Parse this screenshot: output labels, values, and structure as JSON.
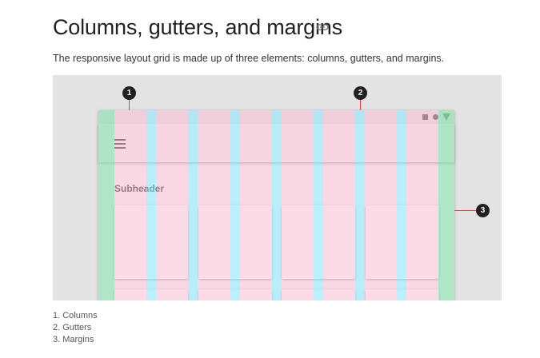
{
  "heading": "Columns, gutters, and margins",
  "intro": "The responsive layout grid is made up of three elements: columns, gutters, and margins.",
  "icons": {
    "permalink": "link-icon",
    "menu": "menu-icon"
  },
  "figure": {
    "subheader": "Subheader",
    "markers": [
      "1",
      "2",
      "3"
    ]
  },
  "legend": [
    "1. Columns",
    "2. Gutters",
    "3. Margins"
  ],
  "colors": {
    "column_overlay": "#f8a0be",
    "gutter_overlay": "#82e1fa",
    "margin_overlay": "#87dcaa",
    "callout_line": "#ee4040",
    "marker_bg": "#212121"
  }
}
